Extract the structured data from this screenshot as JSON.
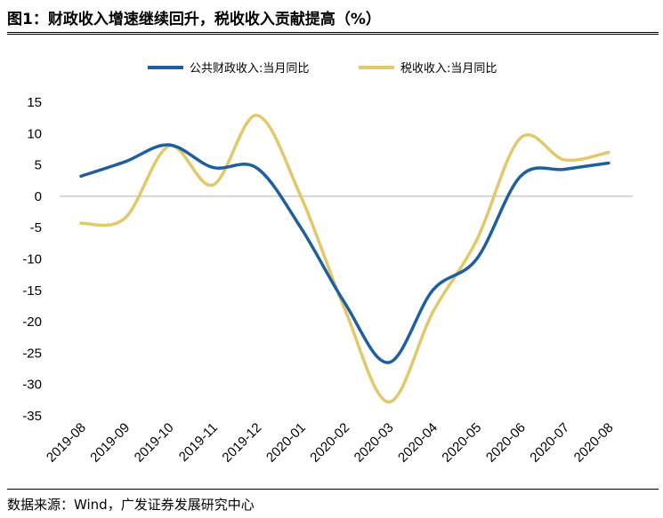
{
  "title": "图1：财政收入增速继续回升，税收收入贡献提高（%）",
  "source": "数据来源：Wind，广发证券发展研究中心",
  "colors": {
    "series_1": "#1F5FA0",
    "series_2": "#E3C86A",
    "axis": "#BFBFBF"
  },
  "chart_data": {
    "type": "line",
    "categories": [
      "2019-08",
      "2019-09",
      "2019-10",
      "2019-11",
      "2019-12",
      "2020-01",
      "2020-02",
      "2020-03",
      "2020-04",
      "2020-05",
      "2020-06",
      "2020-07",
      "2020-08"
    ],
    "series": [
      {
        "name": "公共财政收入:当月同比",
        "values": [
          3.2,
          5.5,
          8.2,
          4.6,
          4.5,
          -5.0,
          -17.0,
          -26.5,
          -15.0,
          -10.0,
          3.2,
          4.3,
          5.3
        ]
      },
      {
        "name": "税收收入:当月同比",
        "values": [
          -4.3,
          -3.5,
          8.0,
          1.8,
          12.9,
          0.0,
          -18.0,
          -32.8,
          -18.5,
          -7.0,
          9.3,
          5.8,
          7.0
        ]
      }
    ],
    "yticks": [
      15,
      10,
      5,
      0,
      -5,
      -10,
      -15,
      -20,
      -25,
      -30,
      -35
    ],
    "ylim": [
      -35,
      15
    ],
    "legend_position": "top",
    "grid": false
  }
}
